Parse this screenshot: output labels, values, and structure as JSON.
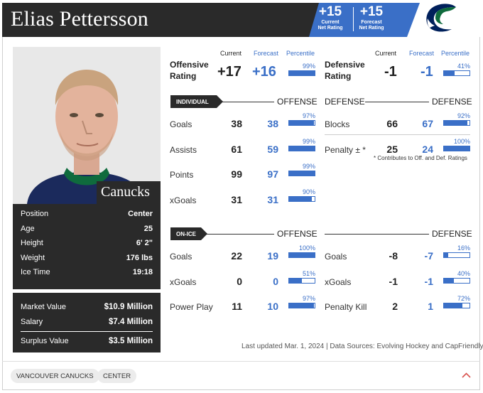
{
  "player": {
    "name": "Elias Pettersson",
    "team_label": "Canucks"
  },
  "net_rating": {
    "current_value": "+15",
    "current_label_1": "Current",
    "current_label_2": "Net Rating",
    "forecast_value": "+15",
    "forecast_label_1": "Forecast",
    "forecast_label_2": "Net Rating"
  },
  "bio": [
    {
      "label": "Position",
      "value": "Center"
    },
    {
      "label": "Age",
      "value": "25"
    },
    {
      "label": "Height",
      "value": "6' 2\""
    },
    {
      "label": "Weight",
      "value": "176 lbs"
    },
    {
      "label": "Ice Time",
      "value": "19:18"
    }
  ],
  "contract": [
    {
      "label": "Market Value",
      "value": "$10.9 Million"
    },
    {
      "label": "Salary",
      "value": "$7.4 Million"
    },
    {
      "label": "Surplus Value",
      "value": "$3.5 Million"
    }
  ],
  "columns": {
    "current": "Current",
    "forecast": "Forecast",
    "percentile": "Percentile"
  },
  "offensive_rating": {
    "label_1": "Offensive",
    "label_2": "Rating",
    "current": "+17",
    "forecast": "+16",
    "percentile": 99,
    "percentile_label": "99%"
  },
  "defensive_rating": {
    "label_1": "Defensive",
    "label_2": "Rating",
    "current": "-1",
    "forecast": "-1",
    "percentile": 41,
    "percentile_label": "41%"
  },
  "individual": {
    "pill": "INDIVIDUAL",
    "offense_title": "OFFENSE",
    "defense_title": "DEFENSE",
    "offense": [
      {
        "label": "Goals",
        "current": "38",
        "forecast": "38",
        "percentile": 97,
        "percentile_label": "97%"
      },
      {
        "label": "Assists",
        "current": "61",
        "forecast": "59",
        "percentile": 99,
        "percentile_label": "99%"
      },
      {
        "label": "Points",
        "current": "99",
        "forecast": "97",
        "percentile": 99,
        "percentile_label": "99%"
      },
      {
        "label": "xGoals",
        "current": "31",
        "forecast": "31",
        "percentile": 90,
        "percentile_label": "90%"
      }
    ],
    "defense": [
      {
        "label": "Blocks",
        "current": "66",
        "forecast": "67",
        "percentile": 92,
        "percentile_label": "92%"
      },
      {
        "label": "Penalty ± *",
        "current": "25",
        "forecast": "24",
        "percentile": 100,
        "percentile_label": "100%"
      }
    ],
    "note": "* Contributes to Off. and Def. Ratings"
  },
  "on_ice": {
    "pill": "ON-ICE",
    "offense_title": "OFFENSE",
    "defense_title": "DEFENSE",
    "offense": [
      {
        "label": "Goals",
        "current": "22",
        "forecast": "19",
        "percentile": 100,
        "percentile_label": "100%"
      },
      {
        "label": "xGoals",
        "current": "0",
        "forecast": "0",
        "percentile": 51,
        "percentile_label": "51%"
      },
      {
        "label": "Power Play",
        "current": "11",
        "forecast": "10",
        "percentile": 97,
        "percentile_label": "97%"
      }
    ],
    "defense": [
      {
        "label": "Goals",
        "current": "-8",
        "forecast": "-7",
        "percentile": 16,
        "percentile_label": "16%"
      },
      {
        "label": "xGoals",
        "current": "-1",
        "forecast": "-1",
        "percentile": 40,
        "percentile_label": "40%"
      },
      {
        "label": "Penalty Kill",
        "current": "2",
        "forecast": "1",
        "percentile": 72,
        "percentile_label": "72%"
      }
    ]
  },
  "updated": "Last updated Mar. 1, 2024 | Data Sources: Evolving Hockey and CapFriendly",
  "footer_tags": [
    "VANCOUVER CANUCKS",
    "CENTER"
  ],
  "icons": {
    "logo": "canucks-orca-logo-icon",
    "collapse": "chevron-up-icon"
  },
  "colors": {
    "accent": "#3a6fc7",
    "dark": "#2a2a2a",
    "chevron": "#d9534f"
  }
}
